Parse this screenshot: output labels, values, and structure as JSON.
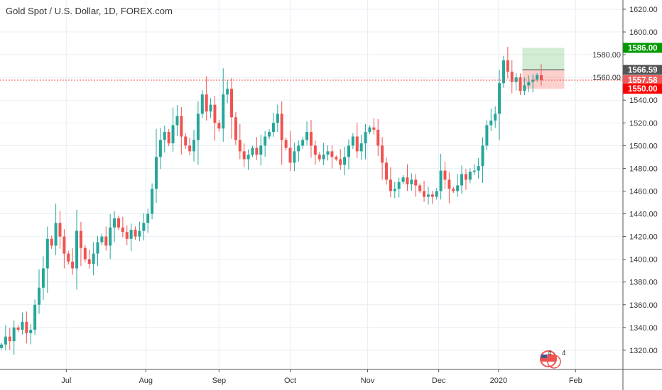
{
  "title": "Gold Spot / U.S. Dollar, 1D, FOREX.com",
  "colors": {
    "up": "#26a69a",
    "down": "#ef5350",
    "grid": "#e8eef4",
    "axis": "#555555",
    "target": "#009900",
    "entry": "#555555",
    "last": "#f05a5a",
    "stop": "#ff0000"
  },
  "event_badges": [
    "4",
    "4"
  ],
  "chart_data": {
    "type": "candlestick",
    "title": "Gold Spot / U.S. Dollar, 1D, FOREX.com",
    "ylim": [
      1310,
      1628
    ],
    "y_ticks": [
      "1320.00",
      "1340.00",
      "1360.00",
      "1380.00",
      "1400.00",
      "1420.00",
      "1440.00",
      "1460.00",
      "1480.00",
      "1500.00",
      "1520.00",
      "1540.00",
      "1560.00",
      "1580.00",
      "1600.00",
      "1620.00"
    ],
    "x_ticks": [
      {
        "label": "Jul",
        "bar": 15.5
      },
      {
        "label": "Aug",
        "bar": 34.5
      },
      {
        "label": "Sep",
        "bar": 52
      },
      {
        "label": "Oct",
        "bar": 69
      },
      {
        "label": "Nov",
        "bar": 87.5
      },
      {
        "label": "Dec",
        "bar": 104.5
      },
      {
        "label": "2020",
        "bar": 118.8
      },
      {
        "label": "Feb",
        "bar": 137.2
      }
    ],
    "first_open": 1322,
    "close": [
      1325,
      1332,
      1328,
      1340,
      1338,
      1345,
      1335,
      1338,
      1360,
      1375,
      1392,
      1418,
      1412,
      1432,
      1420,
      1405,
      1398,
      1392,
      1425,
      1410,
      1400,
      1396,
      1405,
      1415,
      1420,
      1412,
      1428,
      1436,
      1428,
      1424,
      1418,
      1426,
      1420,
      1425,
      1432,
      1440,
      1462,
      1490,
      1505,
      1512,
      1502,
      1518,
      1526,
      1508,
      1500,
      1495,
      1505,
      1528,
      1545,
      1530,
      1536,
      1520,
      1515,
      1545,
      1550,
      1525,
      1505,
      1495,
      1488,
      1492,
      1498,
      1492,
      1500,
      1508,
      1512,
      1520,
      1528,
      1505,
      1498,
      1485,
      1495,
      1500,
      1505,
      1512,
      1500,
      1492,
      1488,
      1492,
      1495,
      1490,
      1488,
      1483,
      1490,
      1500,
      1508,
      1495,
      1502,
      1512,
      1516,
      1514,
      1500,
      1485,
      1470,
      1460,
      1462,
      1468,
      1472,
      1466,
      1470,
      1465,
      1460,
      1455,
      1457,
      1455,
      1460,
      1478,
      1470,
      1462,
      1460,
      1465,
      1475,
      1470,
      1477,
      1478,
      1482,
      1500,
      1518,
      1522,
      1528,
      1555,
      1575,
      1565,
      1556,
      1560,
      1548,
      1553,
      1556,
      1558,
      1562,
      1557.58
    ],
    "position": {
      "target": 1586.0,
      "entry": 1566.59,
      "stop": 1550.0,
      "start_bar": 125,
      "end_bar": 134
    },
    "price_labels": [
      {
        "label": "1586.00",
        "value": 1586.0,
        "kind": "target"
      },
      {
        "label": "1566.59",
        "value": 1566.59,
        "kind": "entry"
      },
      {
        "label": "1557.58",
        "value": 1557.58,
        "kind": "last"
      },
      {
        "label": "1550.00",
        "value": 1550.0,
        "kind": "stop"
      }
    ],
    "last_price": 1557.58
  }
}
